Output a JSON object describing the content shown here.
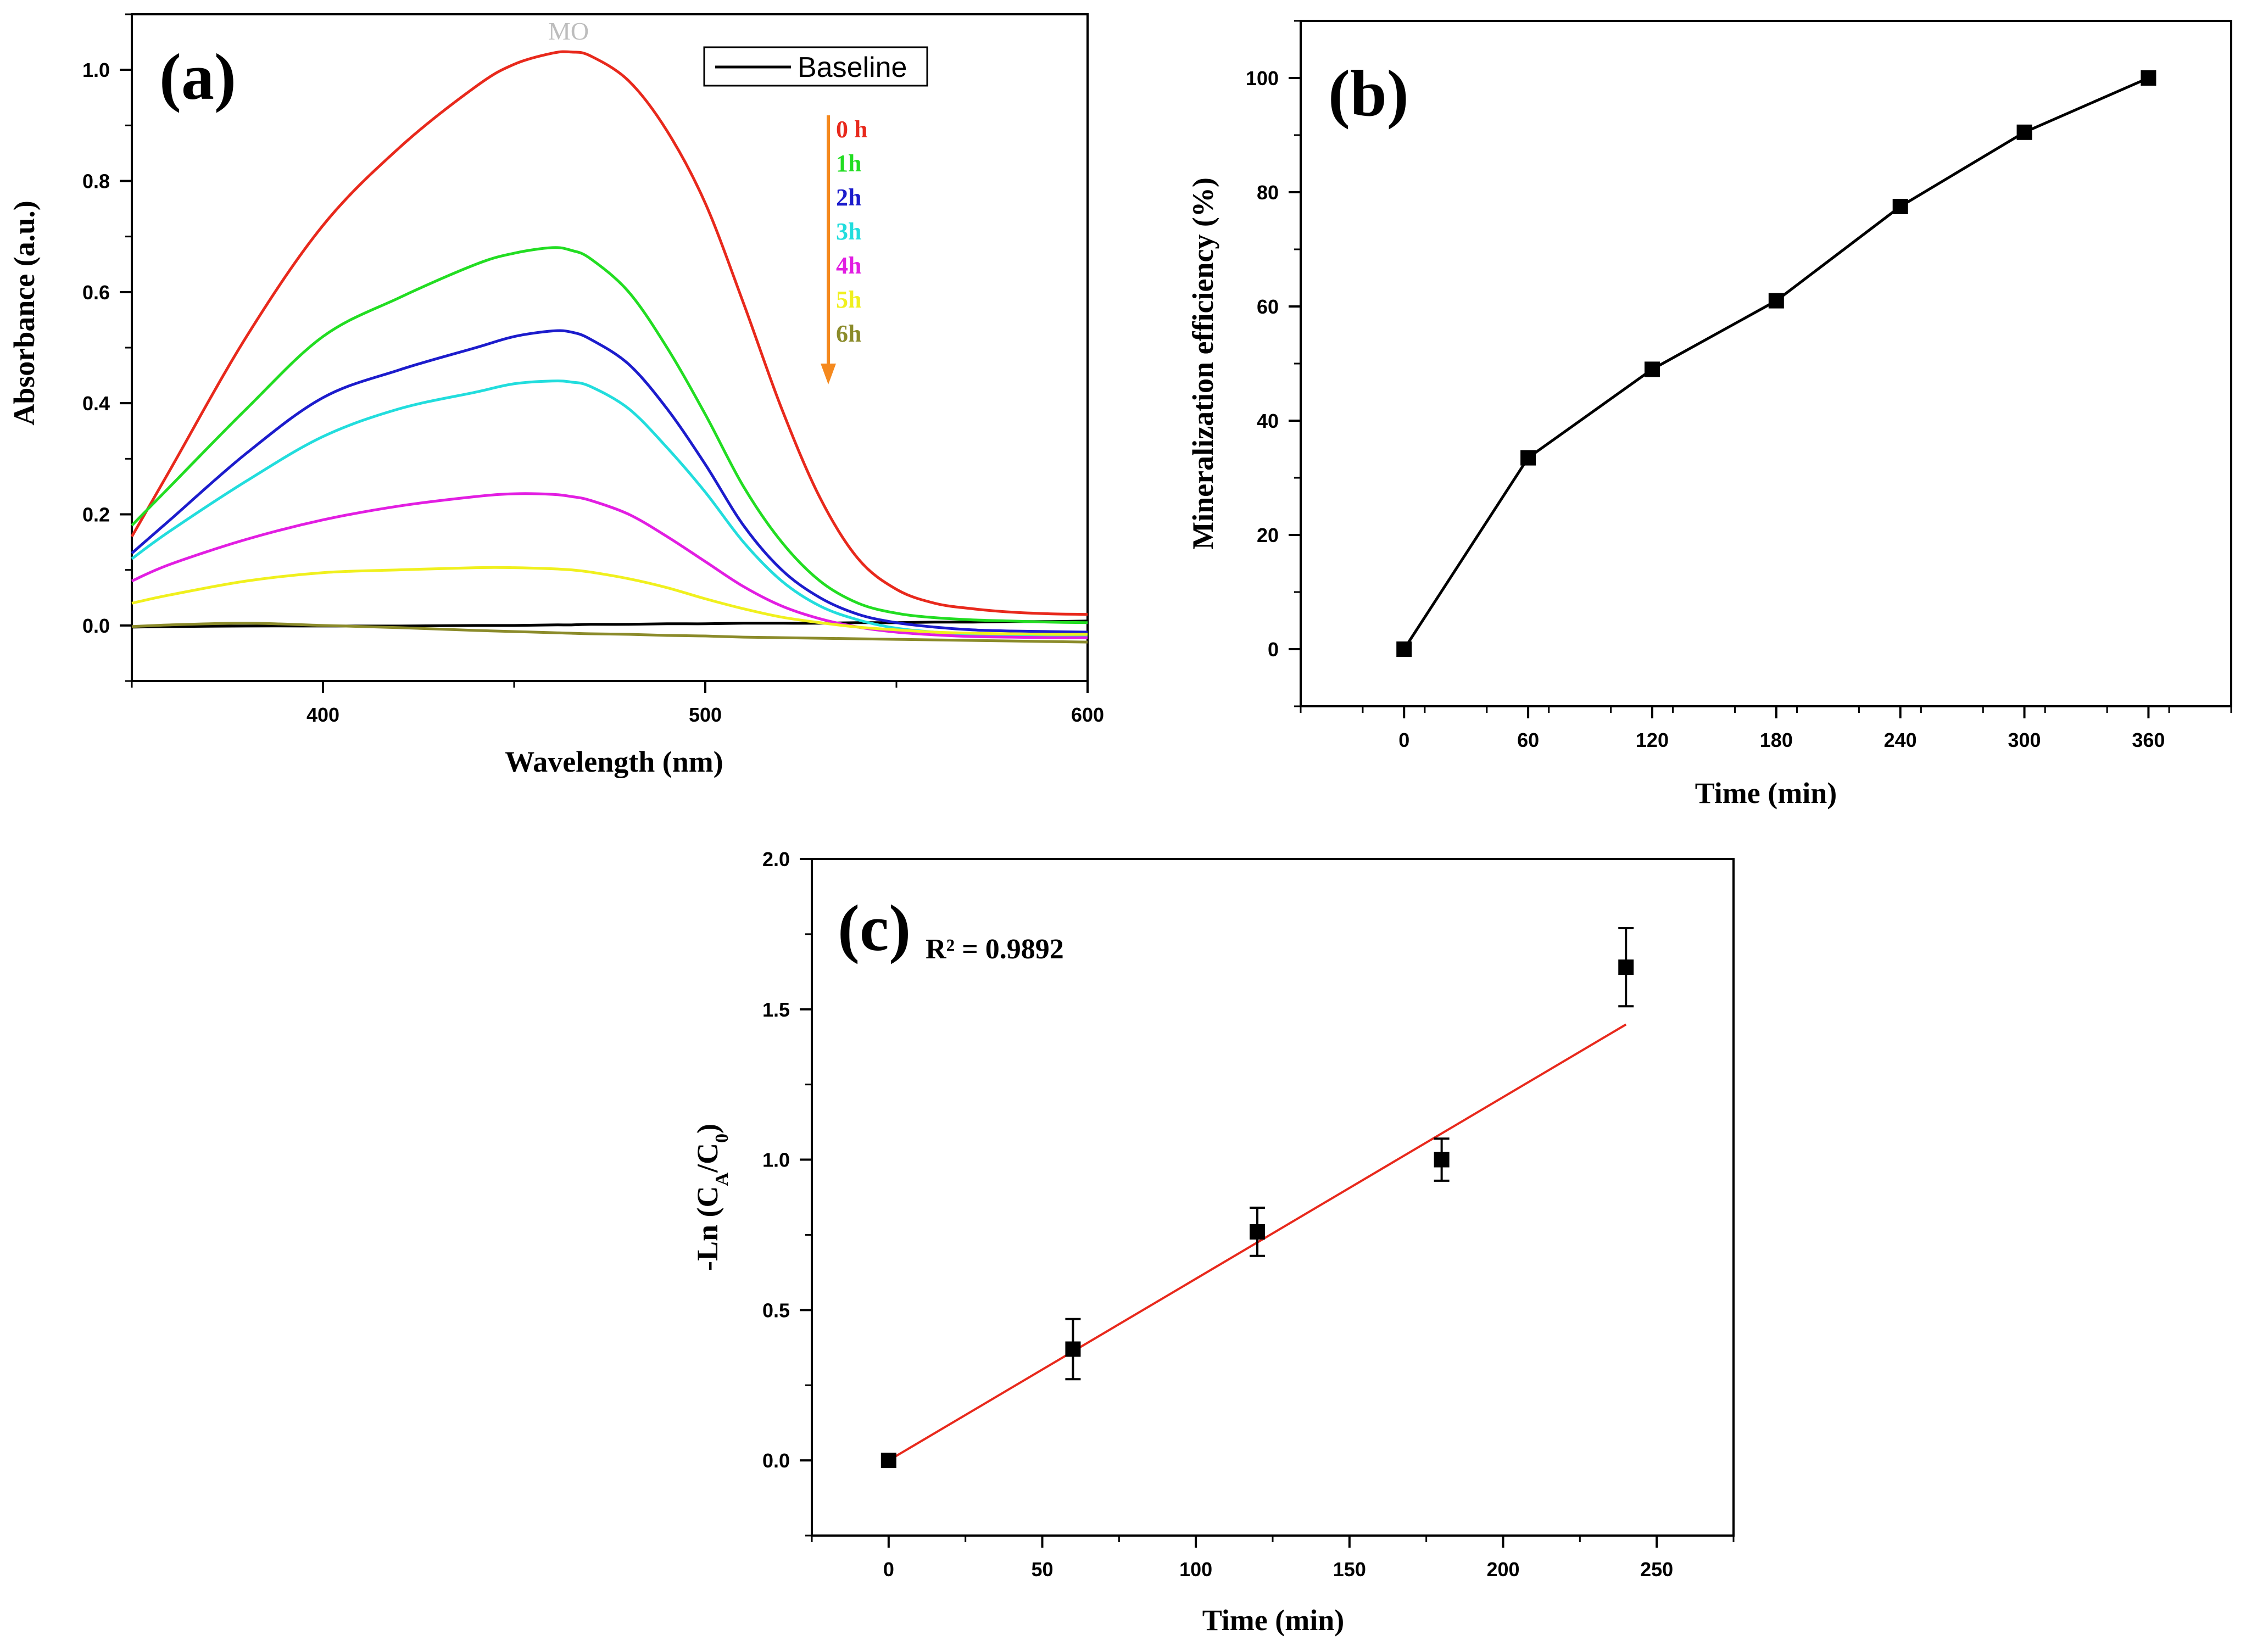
{
  "chart_data": [
    {
      "type": "line",
      "panel": "(a)",
      "title": "",
      "annotation": "MO",
      "xlabel": "Wavelength (nm)",
      "ylabel": "Absorbance (a.u.)",
      "xlim": [
        350,
        600
      ],
      "ylim": [
        -0.1,
        1.1
      ],
      "xticks": [
        400,
        500,
        600
      ],
      "yticks": [
        0.0,
        0.2,
        0.4,
        0.6,
        0.8,
        1.0
      ],
      "x": [
        350,
        360,
        380,
        400,
        420,
        440,
        450,
        460,
        465,
        470,
        480,
        490,
        500,
        510,
        520,
        530,
        540,
        550,
        560,
        570,
        580,
        590,
        600
      ],
      "series": [
        {
          "name": "Baseline",
          "color": "#000000",
          "values": [
            -0.003,
            -0.002,
            -0.001,
            -0.001,
            -0.001,
            0.0,
            0.0,
            0.001,
            0.001,
            0.002,
            0.002,
            0.003,
            0.003,
            0.004,
            0.004,
            0.004,
            0.005,
            0.005,
            0.006,
            0.006,
            0.007,
            0.007,
            0.008
          ]
        },
        {
          "name": "0 h",
          "color": "#e8291c",
          "values": [
            0.16,
            0.28,
            0.52,
            0.72,
            0.86,
            0.97,
            1.01,
            1.03,
            1.032,
            1.025,
            0.98,
            0.89,
            0.76,
            0.58,
            0.39,
            0.23,
            0.12,
            0.065,
            0.04,
            0.03,
            0.024,
            0.021,
            0.02
          ]
        },
        {
          "name": "1h",
          "color": "#22dd22",
          "values": [
            0.18,
            0.25,
            0.39,
            0.52,
            0.59,
            0.65,
            0.67,
            0.68,
            0.675,
            0.66,
            0.6,
            0.5,
            0.38,
            0.25,
            0.15,
            0.08,
            0.04,
            0.022,
            0.014,
            0.01,
            0.008,
            0.006,
            0.005
          ]
        },
        {
          "name": "2h",
          "color": "#1c1ccc",
          "values": [
            0.13,
            0.19,
            0.31,
            0.41,
            0.46,
            0.5,
            0.52,
            0.53,
            0.528,
            0.515,
            0.47,
            0.39,
            0.29,
            0.18,
            0.1,
            0.05,
            0.02,
            0.005,
            -0.003,
            -0.008,
            -0.01,
            -0.011,
            -0.012
          ]
        },
        {
          "name": "3h",
          "color": "#22dddd",
          "values": [
            0.12,
            0.17,
            0.26,
            0.34,
            0.39,
            0.42,
            0.435,
            0.44,
            0.438,
            0.43,
            0.39,
            0.32,
            0.24,
            0.15,
            0.08,
            0.035,
            0.01,
            -0.005,
            -0.012,
            -0.016,
            -0.018,
            -0.02,
            -0.021
          ]
        },
        {
          "name": "4h",
          "color": "#e21ee2",
          "values": [
            0.08,
            0.11,
            0.155,
            0.19,
            0.215,
            0.232,
            0.237,
            0.236,
            0.232,
            0.225,
            0.2,
            0.16,
            0.115,
            0.07,
            0.035,
            0.012,
            -0.003,
            -0.012,
            -0.017,
            -0.02,
            -0.021,
            -0.022,
            -0.022
          ]
        },
        {
          "name": "5h",
          "color": "#f0f01e",
          "values": [
            0.04,
            0.055,
            0.08,
            0.095,
            0.1,
            0.104,
            0.104,
            0.102,
            0.1,
            0.096,
            0.084,
            0.068,
            0.048,
            0.03,
            0.015,
            0.005,
            -0.003,
            -0.008,
            -0.012,
            -0.014,
            -0.015,
            -0.016,
            -0.016
          ]
        },
        {
          "name": "6h",
          "color": "#8b8b2a",
          "values": [
            -0.002,
            0.001,
            0.004,
            0.0,
            -0.004,
            -0.009,
            -0.011,
            -0.013,
            -0.014,
            -0.015,
            -0.016,
            -0.018,
            -0.019,
            -0.021,
            -0.022,
            -0.023,
            -0.024,
            -0.025,
            -0.026,
            -0.027,
            -0.028,
            -0.029,
            -0.03
          ]
        }
      ],
      "time_labels": [
        "0 h",
        "1h",
        "2h",
        "3h",
        "4h",
        "5h",
        "6h"
      ],
      "time_label_colors": [
        "#e8291c",
        "#22dd22",
        "#1c1ccc",
        "#22dddd",
        "#e21ee2",
        "#f0f01e",
        "#8b8b2a"
      ],
      "arrow_color": "#f5891e",
      "legend": [
        "Baseline"
      ]
    },
    {
      "type": "line",
      "panel": "(b)",
      "title": "",
      "xlabel": "Time (min)",
      "ylabel": "Mineralization efficiency (%)",
      "xlim": [
        -50,
        400
      ],
      "ylim": [
        -10,
        110
      ],
      "xticks": [
        0,
        60,
        120,
        180,
        240,
        300,
        360
      ],
      "yticks": [
        0,
        20,
        40,
        60,
        80,
        100
      ],
      "x": [
        0,
        60,
        120,
        180,
        240,
        300,
        360
      ],
      "values": [
        0,
        33.5,
        49,
        61,
        77.5,
        90.5,
        100
      ],
      "marker": "square",
      "color": "#000000"
    },
    {
      "type": "scatter",
      "panel": "(c)",
      "title": "",
      "annotation": "R² = 0.9892",
      "xlabel": "Time (min)",
      "ylabel": "-Ln (C_A/C_0)",
      "xlim": [
        -25,
        275
      ],
      "ylim": [
        -0.25,
        2.0
      ],
      "xticks": [
        0,
        50,
        100,
        150,
        200,
        250
      ],
      "yticks": [
        0.0,
        0.5,
        1.0,
        1.5,
        2.0
      ],
      "x": [
        0,
        60,
        120,
        180,
        240
      ],
      "values": [
        0.0,
        0.37,
        0.76,
        1.0,
        1.64
      ],
      "errors": [
        0.0,
        0.1,
        0.08,
        0.07,
        0.13
      ],
      "fit": {
        "slope": 0.00604,
        "intercept": 0.0,
        "x_range": [
          0,
          240
        ],
        "color": "#e8291c"
      },
      "marker": "square",
      "color": "#000000"
    }
  ]
}
